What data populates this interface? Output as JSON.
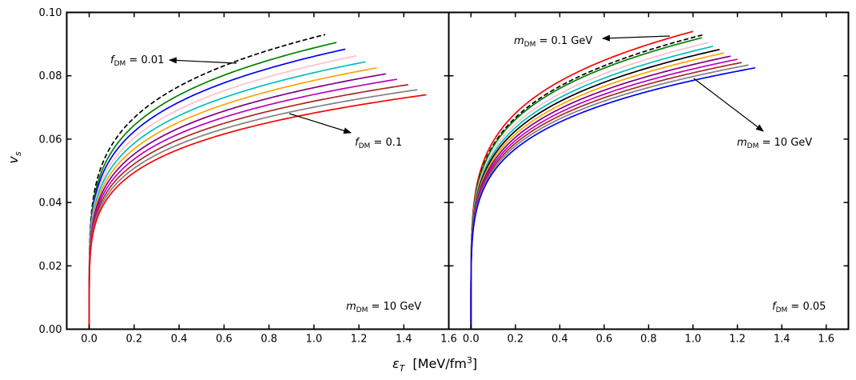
{
  "figure": {
    "ylabel_main": "v",
    "ylabel_sub": "s",
    "xlabel_main": "ε",
    "xlabel_sub": "T",
    "xlabel_units": "[MeV/fm",
    "xlabel_units_sup": "3",
    "xlabel_units_close": "]"
  },
  "chart_data": [
    {
      "type": "line",
      "panel": "left",
      "xlim": [
        -0.1,
        1.6
      ],
      "ylim": [
        0.0,
        0.1
      ],
      "x_ticks": [
        "0.0",
        "0.2",
        "0.4",
        "0.6",
        "0.8",
        "1.0",
        "1.2",
        "1.4",
        "1.6"
      ],
      "y_ticks": [
        "0.00",
        "0.02",
        "0.04",
        "0.06",
        "0.08",
        "0.10"
      ],
      "grid": false,
      "annotations": {
        "top_pre": "f",
        "top_sub": "DM",
        "top_post": " = 0.01",
        "bottom_pre": "f",
        "bottom_sub": "DM",
        "bottom_post": " = 0.1",
        "corner_pre": "m",
        "corner_sub": "DM",
        "corner_post": " = 10 GeV"
      },
      "series": [
        {
          "color": "#000000",
          "dashed": true,
          "x_end": 1.05,
          "y_end": 0.093
        },
        {
          "color": "#008000",
          "dashed": false,
          "x_end": 1.1,
          "y_end": 0.0905
        },
        {
          "color": "#0000ff",
          "dashed": false,
          "x_end": 1.14,
          "y_end": 0.0884
        },
        {
          "color": "#ffc0cb",
          "dashed": false,
          "x_end": 1.19,
          "y_end": 0.0863
        },
        {
          "color": "#00bfbf",
          "dashed": false,
          "x_end": 1.23,
          "y_end": 0.0844
        },
        {
          "color": "#ffa500",
          "dashed": false,
          "x_end": 1.28,
          "y_end": 0.0825
        },
        {
          "color": "#800080",
          "dashed": false,
          "x_end": 1.32,
          "y_end": 0.0806
        },
        {
          "color": "#bf00bf",
          "dashed": false,
          "x_end": 1.37,
          "y_end": 0.0789
        },
        {
          "color": "#a52a2a",
          "dashed": false,
          "x_end": 1.42,
          "y_end": 0.0772
        },
        {
          "color": "#808080",
          "dashed": false,
          "x_end": 1.46,
          "y_end": 0.0756
        },
        {
          "color": "#ff0000",
          "dashed": false,
          "x_end": 1.5,
          "y_end": 0.074
        }
      ]
    },
    {
      "type": "line",
      "panel": "right",
      "xlim": [
        -0.1,
        1.7
      ],
      "ylim": [
        0.0,
        0.1
      ],
      "x_ticks": [
        "0.0",
        "0.2",
        "0.4",
        "0.6",
        "0.8",
        "1.0",
        "1.2",
        "1.4",
        "1.6"
      ],
      "y_ticks": [
        "0.00",
        "0.02",
        "0.04",
        "0.06",
        "0.08",
        "0.10"
      ],
      "grid": false,
      "annotations": {
        "top_pre": "m",
        "top_sub": "DM",
        "top_post": " = 0.1 GeV",
        "bottom_pre": "m",
        "bottom_sub": "DM",
        "bottom_post": " = 10 GeV",
        "corner_pre": "f",
        "corner_sub": "DM",
        "corner_post": " = 0.05"
      },
      "series": [
        {
          "color": "#ff0000",
          "dashed": false,
          "x_end": 1.0,
          "y_end": 0.094
        },
        {
          "color": "#000000",
          "dashed": true,
          "x_end": 1.05,
          "y_end": 0.093
        },
        {
          "color": "#008000",
          "dashed": false,
          "x_end": 1.04,
          "y_end": 0.092
        },
        {
          "color": "#ffc0cb",
          "dashed": false,
          "x_end": 1.07,
          "y_end": 0.0905
        },
        {
          "color": "#00bfbf",
          "dashed": false,
          "x_end": 1.09,
          "y_end": 0.0893
        },
        {
          "color": "#000000",
          "dashed": false,
          "x_end": 1.12,
          "y_end": 0.0883
        },
        {
          "color": "#ffa500",
          "dashed": false,
          "x_end": 1.14,
          "y_end": 0.0872
        },
        {
          "color": "#800080",
          "dashed": false,
          "x_end": 1.17,
          "y_end": 0.0862
        },
        {
          "color": "#bf00bf",
          "dashed": false,
          "x_end": 1.2,
          "y_end": 0.0852
        },
        {
          "color": "#a52a2a",
          "dashed": false,
          "x_end": 1.22,
          "y_end": 0.0842
        },
        {
          "color": "#808080",
          "dashed": false,
          "x_end": 1.25,
          "y_end": 0.0834
        },
        {
          "color": "#0000ff",
          "dashed": false,
          "x_end": 1.28,
          "y_end": 0.0825
        }
      ]
    }
  ]
}
